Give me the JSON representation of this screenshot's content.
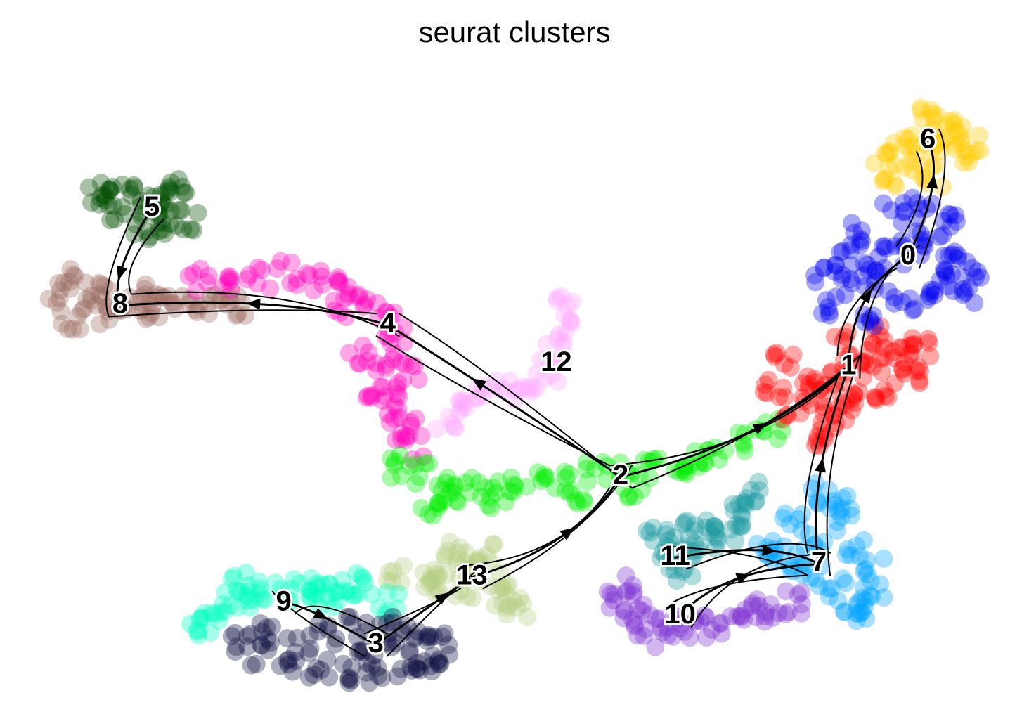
{
  "chart_data": {
    "type": "scatter",
    "title": "seurat clusters",
    "xlabel": "",
    "ylabel": "",
    "grid": false,
    "legend": "on data",
    "xlim": [
      0,
      100
    ],
    "ylim": [
      0,
      100
    ],
    "clusters": [
      {
        "label": "0",
        "color": "#0000ee",
        "center": [
          89.5,
          69.5
        ]
      },
      {
        "label": "1",
        "color": "#ff0000",
        "center": [
          83.5,
          52.5
        ]
      },
      {
        "label": "2",
        "color": "#00ee00",
        "center": [
          60.5,
          35.5
        ]
      },
      {
        "label": "3",
        "color": "#0f1143",
        "center": [
          35.8,
          9.5
        ]
      },
      {
        "label": "4",
        "color": "#ff00bb",
        "center": [
          37.0,
          59.0
        ]
      },
      {
        "label": "5",
        "color": "#004d00",
        "center": [
          13.2,
          77.0
        ]
      },
      {
        "label": "6",
        "color": "#ffcc00",
        "center": [
          91.5,
          87.5
        ]
      },
      {
        "label": "7",
        "color": "#00a2ff",
        "center": [
          80.5,
          22.0
        ]
      },
      {
        "label": "8",
        "color": "#9c6b5e",
        "center": [
          10.0,
          62.0
        ]
      },
      {
        "label": "9",
        "color": "#00ffc2",
        "center": [
          26.5,
          16.0
        ]
      },
      {
        "label": "10",
        "color": "#7b2fd1",
        "center": [
          66.5,
          14.0
        ]
      },
      {
        "label": "11",
        "color": "#1d9aa0",
        "center": [
          66.0,
          23.0
        ]
      },
      {
        "label": "12",
        "color": "#ffaaff",
        "center": [
          54.0,
          53.0
        ]
      },
      {
        "label": "13",
        "color": "#b4cf82",
        "center": [
          45.5,
          20.0
        ]
      }
    ],
    "trajectory": [
      {
        "cluster": "5",
        "points": [
          [
            9,
            80
          ],
          [
            11,
            79
          ],
          [
            13,
            78
          ],
          [
            15,
            79
          ],
          [
            16,
            80
          ],
          [
            14,
            76
          ],
          [
            12,
            74
          ],
          [
            10,
            77
          ],
          [
            8,
            79
          ],
          [
            17,
            75
          ],
          [
            15,
            73
          ]
        ]
      },
      {
        "cluster": "8",
        "points": [
          [
            4,
            64
          ],
          [
            6,
            66
          ],
          [
            8,
            65
          ],
          [
            10,
            63
          ],
          [
            12,
            61
          ],
          [
            14,
            62
          ],
          [
            16,
            63
          ],
          [
            18,
            61
          ],
          [
            9,
            60
          ],
          [
            7,
            62
          ],
          [
            5,
            60
          ],
          [
            13,
            64
          ],
          [
            20,
            63
          ],
          [
            22,
            62
          ]
        ]
      },
      {
        "cluster": "4",
        "points": [
          [
            18,
            66
          ],
          [
            21,
            65
          ],
          [
            24,
            66
          ],
          [
            27,
            67
          ],
          [
            30,
            66
          ],
          [
            33,
            65
          ],
          [
            35,
            63
          ],
          [
            37,
            60
          ],
          [
            38,
            57
          ],
          [
            37,
            53
          ],
          [
            37,
            49
          ],
          [
            38,
            45
          ],
          [
            39,
            43
          ],
          [
            40,
            40
          ],
          [
            36,
            48
          ],
          [
            34,
            54
          ],
          [
            39,
            52
          ],
          [
            32,
            62
          ]
        ]
      },
      {
        "cluster": "12",
        "points": [
          [
            43,
            44
          ],
          [
            45,
            46
          ],
          [
            47,
            48
          ],
          [
            49,
            49
          ],
          [
            51,
            50
          ],
          [
            53,
            52
          ],
          [
            54,
            55
          ],
          [
            55,
            58
          ],
          [
            55,
            62
          ]
        ]
      },
      {
        "cluster": "2",
        "points": [
          [
            38,
            37
          ],
          [
            40,
            36
          ],
          [
            43,
            35
          ],
          [
            46,
            34
          ],
          [
            49,
            34
          ],
          [
            52,
            35
          ],
          [
            55,
            35
          ],
          [
            58,
            36
          ],
          [
            61,
            36
          ],
          [
            64,
            37
          ],
          [
            67,
            38
          ],
          [
            70,
            39
          ],
          [
            73,
            41
          ],
          [
            76,
            43
          ],
          [
            43,
            33
          ],
          [
            48,
            32
          ],
          [
            56,
            33
          ],
          [
            62,
            34
          ],
          [
            68,
            36
          ],
          [
            41,
            31
          ]
        ]
      },
      {
        "cluster": "1",
        "points": [
          [
            78,
            46
          ],
          [
            80,
            48
          ],
          [
            82,
            50
          ],
          [
            84,
            52
          ],
          [
            86,
            54
          ],
          [
            88,
            53
          ],
          [
            90,
            51
          ],
          [
            81,
            44
          ],
          [
            83,
            45
          ],
          [
            85,
            47
          ],
          [
            87,
            49
          ],
          [
            79,
            50
          ],
          [
            77,
            53
          ],
          [
            83,
            56
          ],
          [
            86,
            57
          ],
          [
            89,
            56
          ],
          [
            91,
            55
          ],
          [
            80,
            42
          ],
          [
            76,
            49
          ]
        ]
      },
      {
        "cluster": "0",
        "points": [
          [
            82,
            62
          ],
          [
            84,
            65
          ],
          [
            86,
            68
          ],
          [
            88,
            70
          ],
          [
            90,
            72
          ],
          [
            92,
            71
          ],
          [
            94,
            69
          ],
          [
            96,
            67
          ],
          [
            85,
            73
          ],
          [
            88,
            76
          ],
          [
            91,
            77
          ],
          [
            94,
            75
          ],
          [
            83,
            70
          ],
          [
            86,
            60
          ],
          [
            89,
            62
          ],
          [
            92,
            63
          ],
          [
            95,
            64
          ],
          [
            81,
            67
          ],
          [
            93,
            66
          ],
          [
            87,
            66
          ]
        ]
      },
      {
        "cluster": "6",
        "points": [
          [
            88,
            82
          ],
          [
            90,
            84
          ],
          [
            92,
            86
          ],
          [
            94,
            88
          ],
          [
            93,
            90
          ],
          [
            91,
            91
          ],
          [
            89,
            88
          ],
          [
            95,
            85
          ],
          [
            96,
            87
          ],
          [
            87,
            85
          ],
          [
            92,
            82
          ]
        ]
      },
      {
        "cluster": "7",
        "points": [
          [
            76,
            23
          ],
          [
            78,
            22
          ],
          [
            80,
            20
          ],
          [
            82,
            18
          ],
          [
            84,
            16
          ],
          [
            86,
            18
          ],
          [
            86,
            21
          ],
          [
            80,
            26
          ],
          [
            82,
            29
          ],
          [
            81,
            33
          ],
          [
            83,
            31
          ],
          [
            84,
            24
          ],
          [
            75,
            25
          ],
          [
            78,
            28
          ],
          [
            85,
            14
          ]
        ]
      },
      {
        "cluster": "11",
        "points": [
          [
            65,
            23
          ],
          [
            66,
            25
          ],
          [
            68,
            27
          ],
          [
            70,
            28
          ],
          [
            72,
            29
          ],
          [
            67,
            21
          ],
          [
            69,
            24
          ],
          [
            71,
            26
          ],
          [
            73,
            31
          ],
          [
            74,
            33
          ],
          [
            64,
            26
          ]
        ]
      },
      {
        "cluster": "10",
        "points": [
          [
            60,
            16
          ],
          [
            62,
            14
          ],
          [
            64,
            13
          ],
          [
            66,
            12
          ],
          [
            68,
            12
          ],
          [
            70,
            13
          ],
          [
            72,
            14
          ],
          [
            74,
            15
          ],
          [
            76,
            14
          ],
          [
            61,
            19
          ],
          [
            63,
            11
          ],
          [
            78,
            16
          ]
        ]
      },
      {
        "cluster": "13",
        "points": [
          [
            43,
            22
          ],
          [
            44,
            24
          ],
          [
            46,
            21
          ],
          [
            48,
            19
          ],
          [
            45,
            18
          ],
          [
            42,
            19
          ],
          [
            47,
            24
          ],
          [
            49,
            17
          ],
          [
            41,
            20
          ],
          [
            38,
            21
          ],
          [
            50,
            15
          ]
        ]
      },
      {
        "cluster": "9",
        "points": [
          [
            19,
            14
          ],
          [
            21,
            16
          ],
          [
            23,
            17
          ],
          [
            25,
            18
          ],
          [
            27,
            18
          ],
          [
            29,
            17
          ],
          [
            31,
            17
          ],
          [
            33,
            18
          ],
          [
            35,
            19
          ],
          [
            37,
            16
          ],
          [
            18,
            12
          ],
          [
            22,
            19
          ],
          [
            30,
            19
          ]
        ]
      },
      {
        "cluster": "3",
        "points": [
          [
            22,
            10
          ],
          [
            24,
            8
          ],
          [
            27,
            7
          ],
          [
            30,
            6
          ],
          [
            33,
            5
          ],
          [
            36,
            5
          ],
          [
            39,
            6
          ],
          [
            41,
            7
          ],
          [
            43,
            8
          ],
          [
            40,
            10
          ],
          [
            37,
            11
          ],
          [
            34,
            12
          ],
          [
            31,
            11
          ],
          [
            28,
            10
          ],
          [
            25,
            11
          ],
          [
            38,
            13
          ],
          [
            42,
            11
          ],
          [
            35,
            7
          ]
        ]
      }
    ],
    "streamlines": [
      {
        "from": "5",
        "to": "8"
      },
      {
        "from": "4",
        "to": "8"
      },
      {
        "from": "2",
        "to": "4"
      },
      {
        "from": "2",
        "to": "1"
      },
      {
        "from": "1",
        "to": "0"
      },
      {
        "from": "0",
        "to": "6"
      },
      {
        "from": "7",
        "to": "1"
      },
      {
        "from": "11",
        "to": "7"
      },
      {
        "from": "10",
        "to": "7"
      },
      {
        "from": "13",
        "to": "2"
      },
      {
        "from": "9",
        "to": "3"
      },
      {
        "from": "3",
        "to": "13"
      }
    ]
  }
}
